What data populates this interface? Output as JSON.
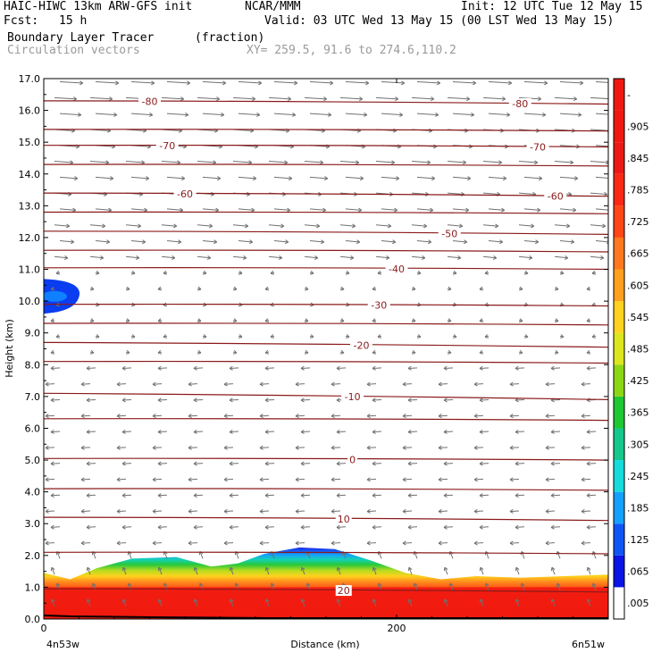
{
  "header": {
    "model": "HAIC-HIWC 13km ARW-GFS init",
    "org": "NCAR/MMM",
    "init": "Init: 12 UTC Tue 12 May 15",
    "fcst_label": "Fcst:",
    "fcst_value": "15 h",
    "valid": "Valid: 03 UTC Wed 13 May 15 (00 LST Wed 13 May 15)",
    "field": "Boundary Layer Tracer",
    "units": "(fraction)",
    "overlay": "Circulation vectors",
    "xy": "XY= 259.5, 91.6 to 274.6,110.2"
  },
  "axes": {
    "ylabel": "Height (km)",
    "xlabel": "Distance (km)",
    "left_endpoint": "4n53w",
    "right_endpoint": "6n51w"
  },
  "colors": {
    "contour": "#8b1a1a",
    "vector": "#707070"
  },
  "chart_data": {
    "type": "heatmap",
    "xlabel": "Distance (km)",
    "ylabel": "Height (km)",
    "xlim": [
      0,
      320
    ],
    "ylim": [
      0,
      17
    ],
    "x_ticks": [
      "0",
      "200"
    ],
    "y_ticks": [
      "0.0",
      "1.0",
      "2.0",
      "3.0",
      "4.0",
      "5.0",
      "6.0",
      "7.0",
      "8.0",
      "9.0",
      "10.0",
      "11.0",
      "12.0",
      "13.0",
      "14.0",
      "15.0",
      "16.0",
      "17.0"
    ],
    "colorbar": {
      "labels": [
        ".005",
        ".065",
        ".125",
        ".185",
        ".245",
        ".305",
        ".365",
        ".425",
        ".485",
        ".545",
        ".605",
        ".665",
        ".725",
        ".785",
        ".845",
        ".905",
        "-"
      ],
      "colors": [
        "#ffffff",
        "#0a14e6",
        "#0f55f5",
        "#14a0ff",
        "#14dcdc",
        "#14c88c",
        "#1ec832",
        "#8cd714",
        "#dce61e",
        "#ffd21e",
        "#ffa01e",
        "#ff781e",
        "#ff4614",
        "#fa2814",
        "#eb1914",
        "#f0190f",
        "#f0190f"
      ]
    },
    "boundary_layer_top_km": [
      {
        "x": 0,
        "top": 1.45
      },
      {
        "x": 15,
        "top": 1.25
      },
      {
        "x": 30,
        "top": 1.6
      },
      {
        "x": 50,
        "top": 1.9
      },
      {
        "x": 75,
        "top": 1.95
      },
      {
        "x": 95,
        "top": 1.65
      },
      {
        "x": 110,
        "top": 1.75
      },
      {
        "x": 125,
        "top": 2.05
      },
      {
        "x": 145,
        "top": 2.25
      },
      {
        "x": 165,
        "top": 2.2
      },
      {
        "x": 185,
        "top": 1.85
      },
      {
        "x": 205,
        "top": 1.45
      },
      {
        "x": 225,
        "top": 1.25
      },
      {
        "x": 245,
        "top": 1.35
      },
      {
        "x": 270,
        "top": 1.3
      },
      {
        "x": 295,
        "top": 1.35
      },
      {
        "x": 320,
        "top": 1.4
      }
    ],
    "upper_feature": {
      "x": [
        0,
        15
      ],
      "height_km": [
        9.6,
        10.7
      ],
      "color": "#0a3cf0"
    },
    "contours": [
      {
        "label": "-80",
        "y_left": 16.3,
        "y_right": 16.2,
        "label_x": [
          60,
          270
        ]
      },
      {
        "label": "-70",
        "y_left": 14.9,
        "y_right": 14.85,
        "label_x": [
          70,
          280
        ]
      },
      {
        "label": "-60",
        "y_left": 13.4,
        "y_right": 13.3,
        "label_x": [
          80,
          290
        ]
      },
      {
        "label": "-50",
        "y_left": 12.2,
        "y_right": 12.1,
        "label_x": [
          230
        ]
      },
      {
        "label": "-40",
        "y_left": 11.05,
        "y_right": 11.0,
        "label_x": [
          200
        ]
      },
      {
        "label": "-30",
        "y_left": 9.9,
        "y_right": 9.85,
        "label_x": [
          190
        ]
      },
      {
        "label": "-20",
        "y_left": 8.7,
        "y_right": 8.55,
        "label_x": [
          180
        ]
      },
      {
        "label": "-10",
        "y_left": 7.1,
        "y_right": 6.9,
        "label_x": [
          175
        ]
      },
      {
        "label": "0",
        "y_left": 5.05,
        "y_right": 5.0,
        "label_x": [
          175
        ]
      },
      {
        "label": "10",
        "y_left": 3.2,
        "y_right": 3.1,
        "label_x": [
          170
        ]
      },
      {
        "label": "20",
        "y_left": 0.95,
        "y_right": 0.85,
        "label_x": [
          170
        ]
      }
    ],
    "unlabeled_contours_km": [
      15.4,
      14.3,
      12.8,
      11.6,
      9.3,
      8.1,
      6.3,
      4.1,
      2.1
    ]
  }
}
